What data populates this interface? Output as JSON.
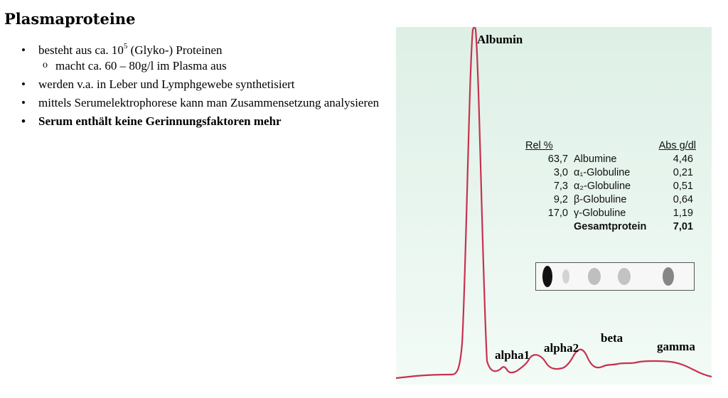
{
  "slide": {
    "title": "Plasmaproteine",
    "bullets": {
      "b1_pre": "besteht aus ca. 10",
      "b1_sup": "5",
      "b1_post": " (Glyko-) Proteinen",
      "b1_sub": "macht ca. 60 – 80g/l im Plasma aus",
      "b2": "werden v.a. in Leber und Lymphgewebe synthetisiert",
      "b3": "mittels Serumelektrophorese kann man Zusammensetzung analysieren",
      "b4": "Serum enthält keine Gerinnungsfaktoren mehr"
    }
  },
  "figure": {
    "peaks": {
      "albumin": "Albumin",
      "alpha1": "alpha1",
      "alpha2": "alpha2",
      "beta": "beta",
      "gamma": "gamma"
    },
    "table": {
      "header_rel": "Rel %",
      "header_abs": "Abs g/dl",
      "rows": [
        {
          "rel": "63,7",
          "name": "Albumine",
          "abs": "4,46"
        },
        {
          "rel": "3,0",
          "name": "α₁-Globuline",
          "abs": "0,21"
        },
        {
          "rel": "7,3",
          "name": "α₂-Globuline",
          "abs": "0,51"
        },
        {
          "rel": "9,2",
          "name": "β-Globuline",
          "abs": "0,64"
        },
        {
          "rel": "17,0",
          "name": "γ-Globuline",
          "abs": "1,19"
        }
      ],
      "total_label": "Gesamtprotein",
      "total_value": "7,01"
    },
    "colors": {
      "curve": "#c8314f",
      "background": "#e3f2ea"
    }
  }
}
